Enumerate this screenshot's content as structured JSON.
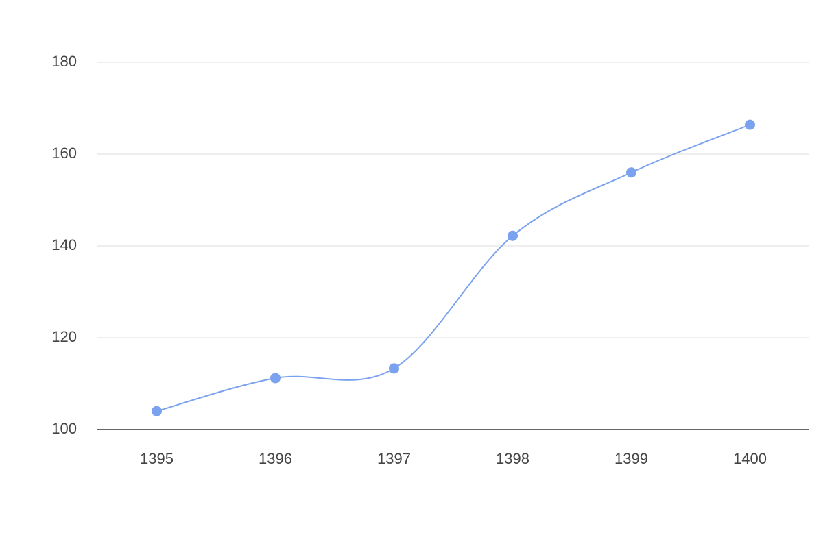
{
  "chart_data": {
    "type": "line",
    "categories": [
      "1395",
      "1396",
      "1397",
      "1398",
      "1399",
      "1400"
    ],
    "series": [
      {
        "color": "#7ba2ee",
        "values": [
          104,
          111.2,
          113.3,
          142.2,
          156,
          166.4
        ]
      }
    ],
    "ylim": [
      100,
      180
    ],
    "yticks": [
      100,
      120,
      140,
      160,
      180
    ],
    "grid": true,
    "smooth": true
  }
}
